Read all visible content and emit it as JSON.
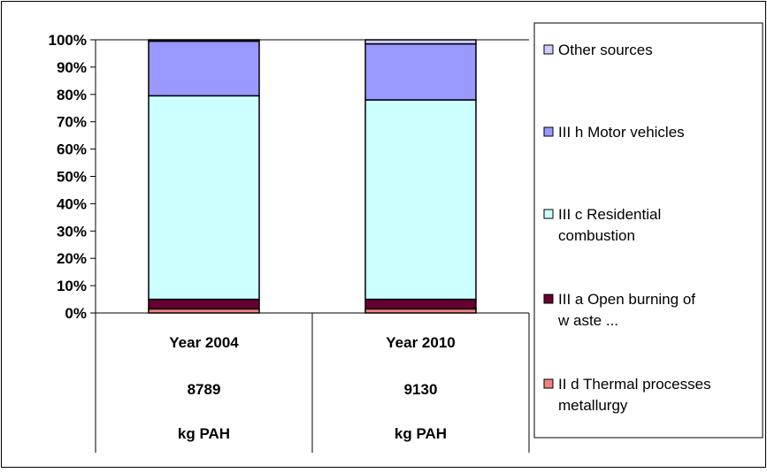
{
  "chart_data": {
    "type": "bar",
    "stacked": true,
    "percent_stacked": true,
    "ylim": [
      0,
      100
    ],
    "yticks": [
      "0%",
      "10%",
      "20%",
      "30%",
      "40%",
      "50%",
      "60%",
      "70%",
      "80%",
      "90%",
      "100%"
    ],
    "categories": [
      {
        "line1": "Year 2004",
        "line2": "8789",
        "line3": "kg PAH"
      },
      {
        "line1": "Year 2010",
        "line2": "9130",
        "line3": "kg PAH"
      }
    ],
    "series": [
      {
        "name": "II d Thermal processes metallurgy",
        "legend_lines": [
          "II d Thermal processes",
          "metallurgy"
        ],
        "color": "#f08080",
        "values": [
          1.5,
          1.5
        ]
      },
      {
        "name": "III a Open burning of waste ...",
        "legend_lines": [
          "III a Open burning of",
          "w aste ..."
        ],
        "color": "#660033",
        "values": [
          3.5,
          3.5
        ]
      },
      {
        "name": "III c Residential combustion",
        "legend_lines": [
          "III c Residential",
          "combustion"
        ],
        "color": "#ccffff",
        "values": [
          74.5,
          73
        ]
      },
      {
        "name": "III h Motor vehicles",
        "legend_lines": [
          "III h Motor vehicles"
        ],
        "color": "#9999ff",
        "values": [
          20,
          20.5
        ]
      },
      {
        "name": "Other sources",
        "legend_lines": [
          "Other sources"
        ],
        "color": "#ccccff",
        "values": [
          0.5,
          1.5
        ]
      }
    ],
    "grid": false,
    "legend_position": "right"
  }
}
